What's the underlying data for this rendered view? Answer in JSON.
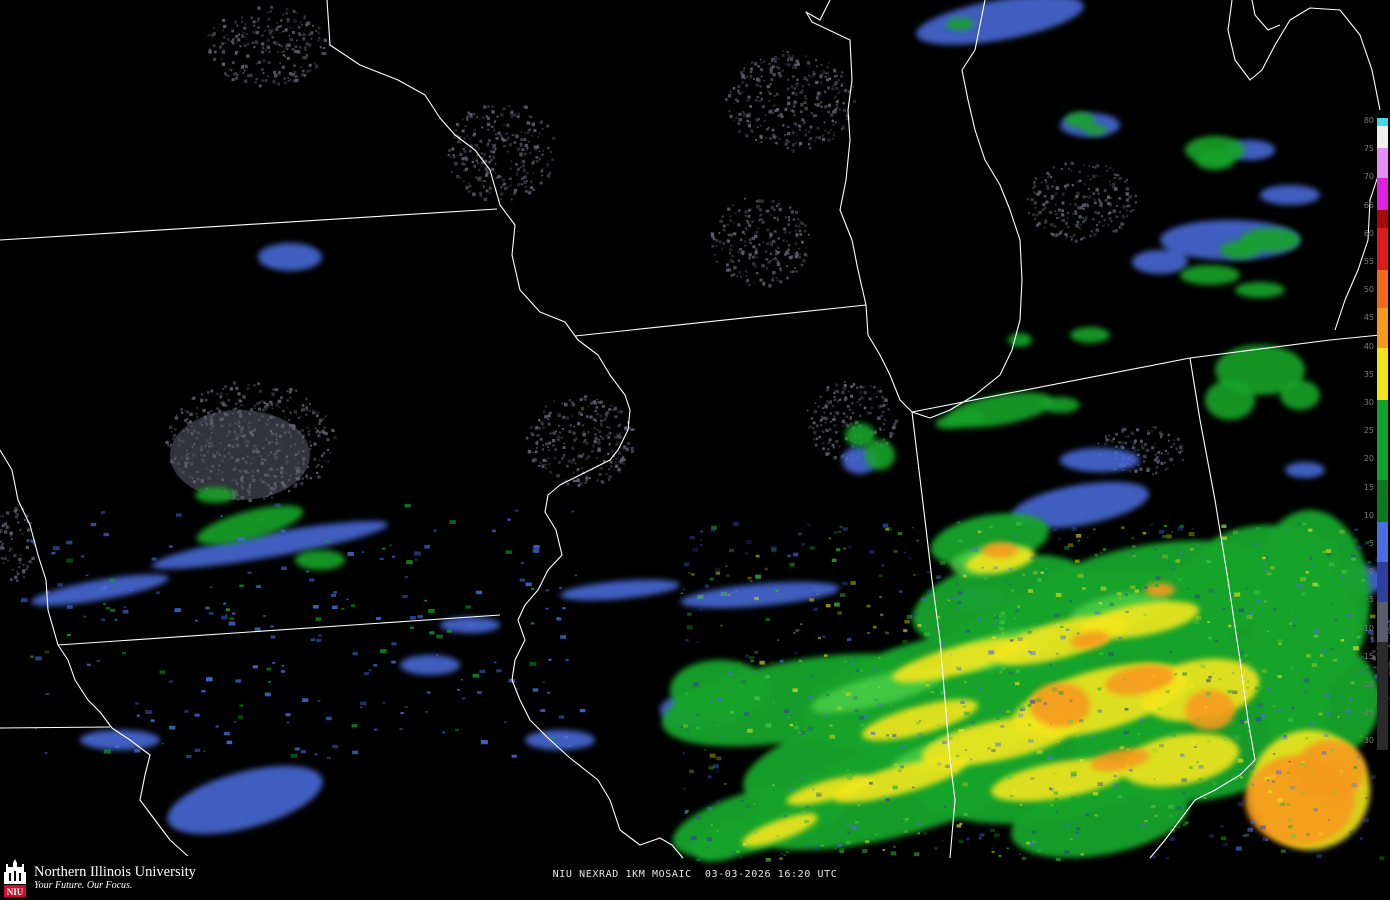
{
  "product": {
    "caption": "NIU NEXRAD 1KM MOSAIC  03-03-2026 16:20 UTC"
  },
  "branding": {
    "name": "Northern Illinois University",
    "tagline": "Your Future. Our Focus.",
    "mark_text": "NIU",
    "mark_color": "#c8102e"
  },
  "colorbar": {
    "labels": [
      "80",
      "75",
      "70",
      "65",
      "60",
      "55",
      "50",
      "45",
      "40",
      "35",
      "30",
      "25",
      "20",
      "15",
      "10",
      "5",
      "0",
      "-5",
      "-10",
      "-15",
      "-20",
      "-25",
      "-30"
    ],
    "colors": {
      "light_blue": "#4a6ee0",
      "dark_blue": "#2f3f9e",
      "green": "#14a32a",
      "light_green": "#4fd04a",
      "yellow": "#f2e51e",
      "orange": "#f59a1c",
      "red": "#e01a1a",
      "dark_red": "#a80808",
      "magenta": "#e21fe0",
      "violet": "#9d5cf5",
      "cyan": "#3fd7ea",
      "gray": "#7d7d93"
    }
  }
}
